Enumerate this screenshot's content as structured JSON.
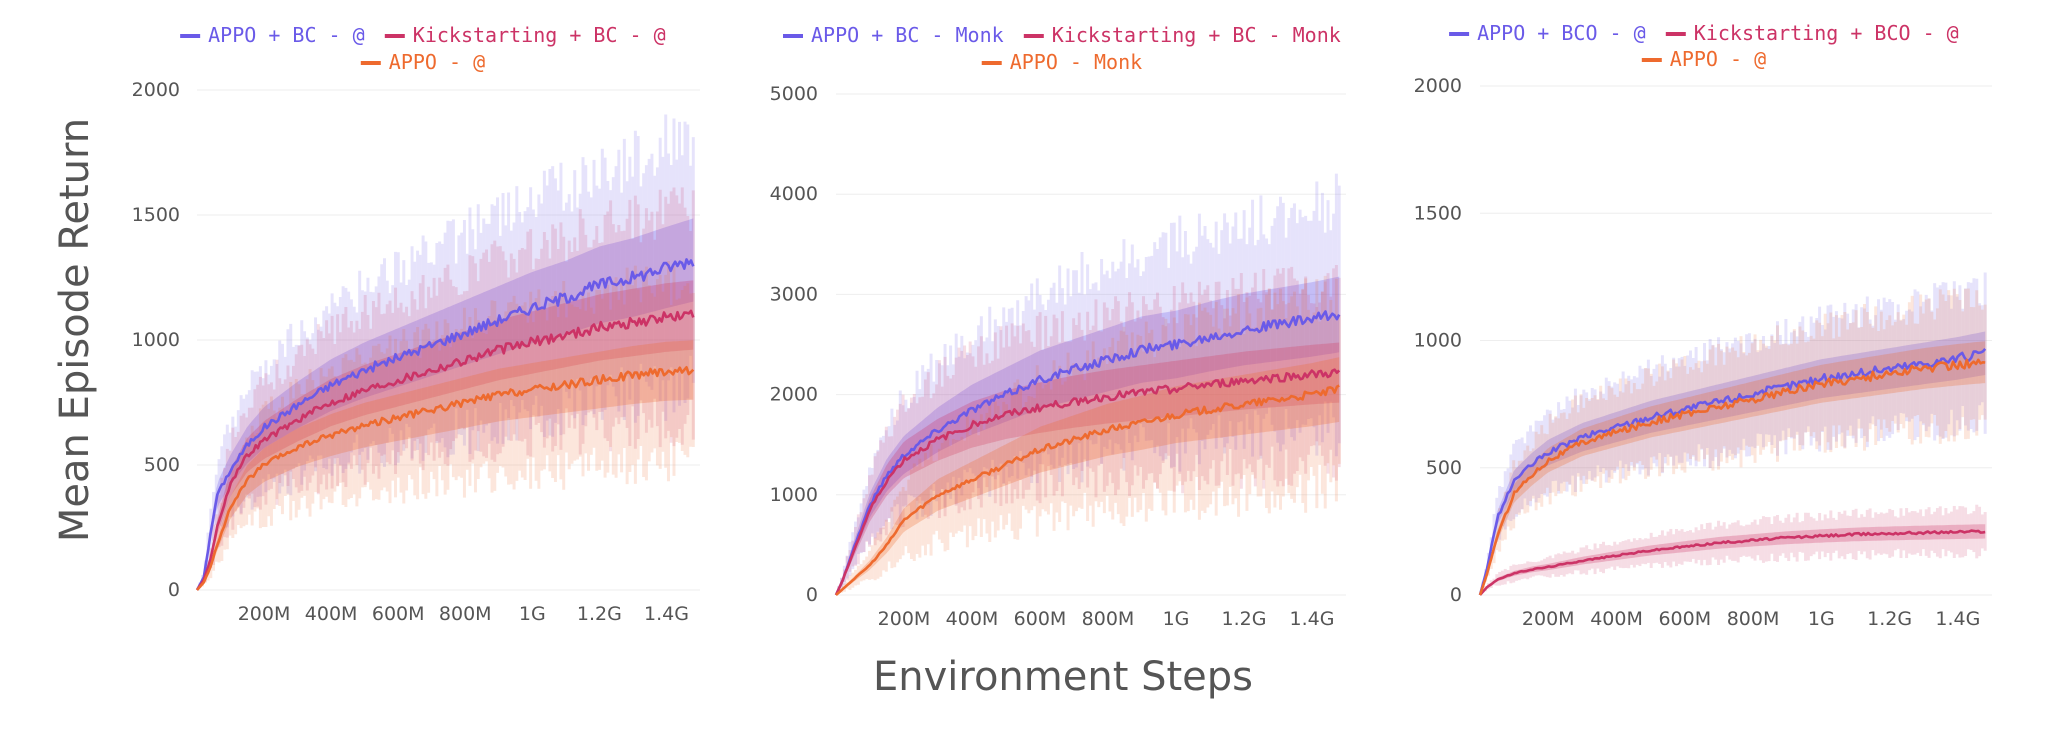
{
  "figure": {
    "ylabel": "Mean Episode Return",
    "xlabel": "Environment Steps"
  },
  "chart_data": [
    {
      "type": "line",
      "xlim": [
        0,
        1500000000
      ],
      "ylim": [
        0,
        2000
      ],
      "xticks": [
        200000000,
        400000000,
        600000000,
        800000000,
        1000000000,
        1200000000,
        1400000000
      ],
      "xtick_labels": [
        "200M",
        "400M",
        "600M",
        "800M",
        "1G",
        "1.2G",
        "1.4G"
      ],
      "yticks": [
        0,
        500,
        1000,
        1500,
        2000
      ],
      "ytick_labels": [
        "0",
        "500",
        "1000",
        "1500",
        "2000"
      ],
      "legend_position": "top",
      "series": [
        {
          "name": "APPO + BC - @",
          "color": "#6a5ae8",
          "x": [
            0,
            20000000,
            40000000,
            60000000,
            100000000,
            150000000,
            200000000,
            300000000,
            400000000,
            500000000,
            600000000,
            700000000,
            800000000,
            900000000,
            1000000000,
            1100000000,
            1200000000,
            1300000000,
            1400000000,
            1480000000
          ],
          "y": [
            0,
            50,
            220,
            380,
            480,
            580,
            650,
            740,
            820,
            880,
            930,
            980,
            1030,
            1080,
            1130,
            1170,
            1220,
            1250,
            1290,
            1320
          ],
          "band": 0.28
        },
        {
          "name": "Kickstarting + BC - @",
          "color": "#cc3366",
          "x": [
            0,
            20000000,
            40000000,
            60000000,
            100000000,
            150000000,
            200000000,
            300000000,
            400000000,
            500000000,
            600000000,
            700000000,
            800000000,
            900000000,
            1000000000,
            1100000000,
            1200000000,
            1300000000,
            1400000000,
            1480000000
          ],
          "y": [
            0,
            40,
            120,
            250,
            430,
            540,
            600,
            680,
            750,
            800,
            840,
            880,
            920,
            960,
            990,
            1020,
            1050,
            1070,
            1090,
            1100
          ],
          "band": 0.28
        },
        {
          "name": "APPO - @",
          "color": "#ee6a2e",
          "x": [
            0,
            20000000,
            40000000,
            60000000,
            100000000,
            150000000,
            200000000,
            300000000,
            400000000,
            500000000,
            600000000,
            700000000,
            800000000,
            900000000,
            1000000000,
            1100000000,
            1200000000,
            1300000000,
            1400000000,
            1480000000
          ],
          "y": [
            0,
            30,
            90,
            180,
            330,
            440,
            500,
            570,
            620,
            660,
            690,
            720,
            750,
            780,
            800,
            820,
            840,
            860,
            875,
            880
          ],
          "band": 0.3
        }
      ]
    },
    {
      "type": "line",
      "xlim": [
        0,
        1500000000
      ],
      "ylim": [
        0,
        5000
      ],
      "xticks": [
        200000000,
        400000000,
        600000000,
        800000000,
        1000000000,
        1200000000,
        1400000000
      ],
      "xtick_labels": [
        "200M",
        "400M",
        "600M",
        "800M",
        "1G",
        "1.2G",
        "1.4G"
      ],
      "yticks": [
        0,
        1000,
        2000,
        3000,
        4000,
        5000
      ],
      "ytick_labels": [
        "0",
        "1000",
        "2000",
        "3000",
        "4000",
        "5000"
      ],
      "legend_position": "top",
      "series": [
        {
          "name": "APPO + BC - Monk",
          "color": "#6a5ae8",
          "x": [
            0,
            20000000,
            50000000,
            100000000,
            150000000,
            200000000,
            300000000,
            400000000,
            500000000,
            600000000,
            700000000,
            800000000,
            900000000,
            1000000000,
            1100000000,
            1200000000,
            1300000000,
            1400000000,
            1480000000
          ],
          "y": [
            0,
            150,
            450,
            900,
            1200,
            1400,
            1650,
            1850,
            2000,
            2150,
            2250,
            2350,
            2450,
            2500,
            2580,
            2650,
            2700,
            2750,
            2800
          ],
          "band": 0.3
        },
        {
          "name": "Kickstarting + BC - Monk",
          "color": "#cc3366",
          "x": [
            0,
            20000000,
            50000000,
            100000000,
            150000000,
            200000000,
            300000000,
            400000000,
            500000000,
            600000000,
            700000000,
            800000000,
            900000000,
            1000000000,
            1100000000,
            1200000000,
            1300000000,
            1400000000,
            1480000000
          ],
          "y": [
            0,
            150,
            420,
            850,
            1150,
            1350,
            1550,
            1700,
            1800,
            1870,
            1930,
            1980,
            2020,
            2060,
            2100,
            2140,
            2170,
            2200,
            2220
          ],
          "band": 0.3
        },
        {
          "name": "APPO - Monk",
          "color": "#ee6a2e",
          "x": [
            0,
            20000000,
            50000000,
            100000000,
            150000000,
            200000000,
            300000000,
            400000000,
            500000000,
            600000000,
            700000000,
            800000000,
            900000000,
            1000000000,
            1100000000,
            1200000000,
            1300000000,
            1400000000,
            1480000000
          ],
          "y": [
            0,
            60,
            150,
            300,
            500,
            750,
            1000,
            1150,
            1300,
            1450,
            1550,
            1650,
            1720,
            1800,
            1850,
            1900,
            1950,
            2000,
            2050
          ],
          "band": 0.35
        }
      ]
    },
    {
      "type": "line",
      "xlim": [
        0,
        1500000000
      ],
      "ylim": [
        0,
        2000
      ],
      "xticks": [
        200000000,
        400000000,
        600000000,
        800000000,
        1000000000,
        1200000000,
        1400000000
      ],
      "xtick_labels": [
        "200M",
        "400M",
        "600M",
        "800M",
        "1G",
        "1.2G",
        "1.4G"
      ],
      "yticks": [
        0,
        500,
        1000,
        1500,
        2000
      ],
      "ytick_labels": [
        "0",
        "500",
        "1000",
        "1500",
        "2000"
      ],
      "legend_position": "top",
      "series": [
        {
          "name": "APPO + BCO - @",
          "color": "#6a5ae8",
          "x": [
            0,
            20000000,
            50000000,
            100000000,
            150000000,
            200000000,
            300000000,
            400000000,
            500000000,
            600000000,
            700000000,
            800000000,
            900000000,
            1000000000,
            1100000000,
            1200000000,
            1300000000,
            1400000000,
            1480000000
          ],
          "y": [
            0,
            100,
            300,
            450,
            510,
            560,
            620,
            660,
            700,
            730,
            760,
            790,
            820,
            850,
            870,
            890,
            910,
            930,
            950
          ],
          "band": 0.2
        },
        {
          "name": "Kickstarting + BCO - @",
          "color": "#cc3366",
          "x": [
            0,
            20000000,
            50000000,
            100000000,
            150000000,
            200000000,
            300000000,
            400000000,
            500000000,
            600000000,
            700000000,
            800000000,
            900000000,
            1000000000,
            1100000000,
            1200000000,
            1300000000,
            1400000000,
            1480000000
          ],
          "y": [
            0,
            30,
            60,
            85,
            100,
            110,
            135,
            155,
            175,
            190,
            205,
            215,
            225,
            232,
            238,
            242,
            245,
            248,
            250
          ],
          "band": 0.25
        },
        {
          "name": "APPO - @",
          "color": "#ee6a2e",
          "x": [
            0,
            20000000,
            50000000,
            100000000,
            150000000,
            200000000,
            300000000,
            400000000,
            500000000,
            600000000,
            700000000,
            800000000,
            900000000,
            1000000000,
            1100000000,
            1200000000,
            1300000000,
            1400000000,
            1480000000
          ],
          "y": [
            0,
            80,
            230,
            400,
            470,
            530,
            600,
            640,
            680,
            710,
            740,
            770,
            800,
            830,
            850,
            870,
            890,
            905,
            915
          ],
          "band": 0.2
        }
      ]
    }
  ]
}
